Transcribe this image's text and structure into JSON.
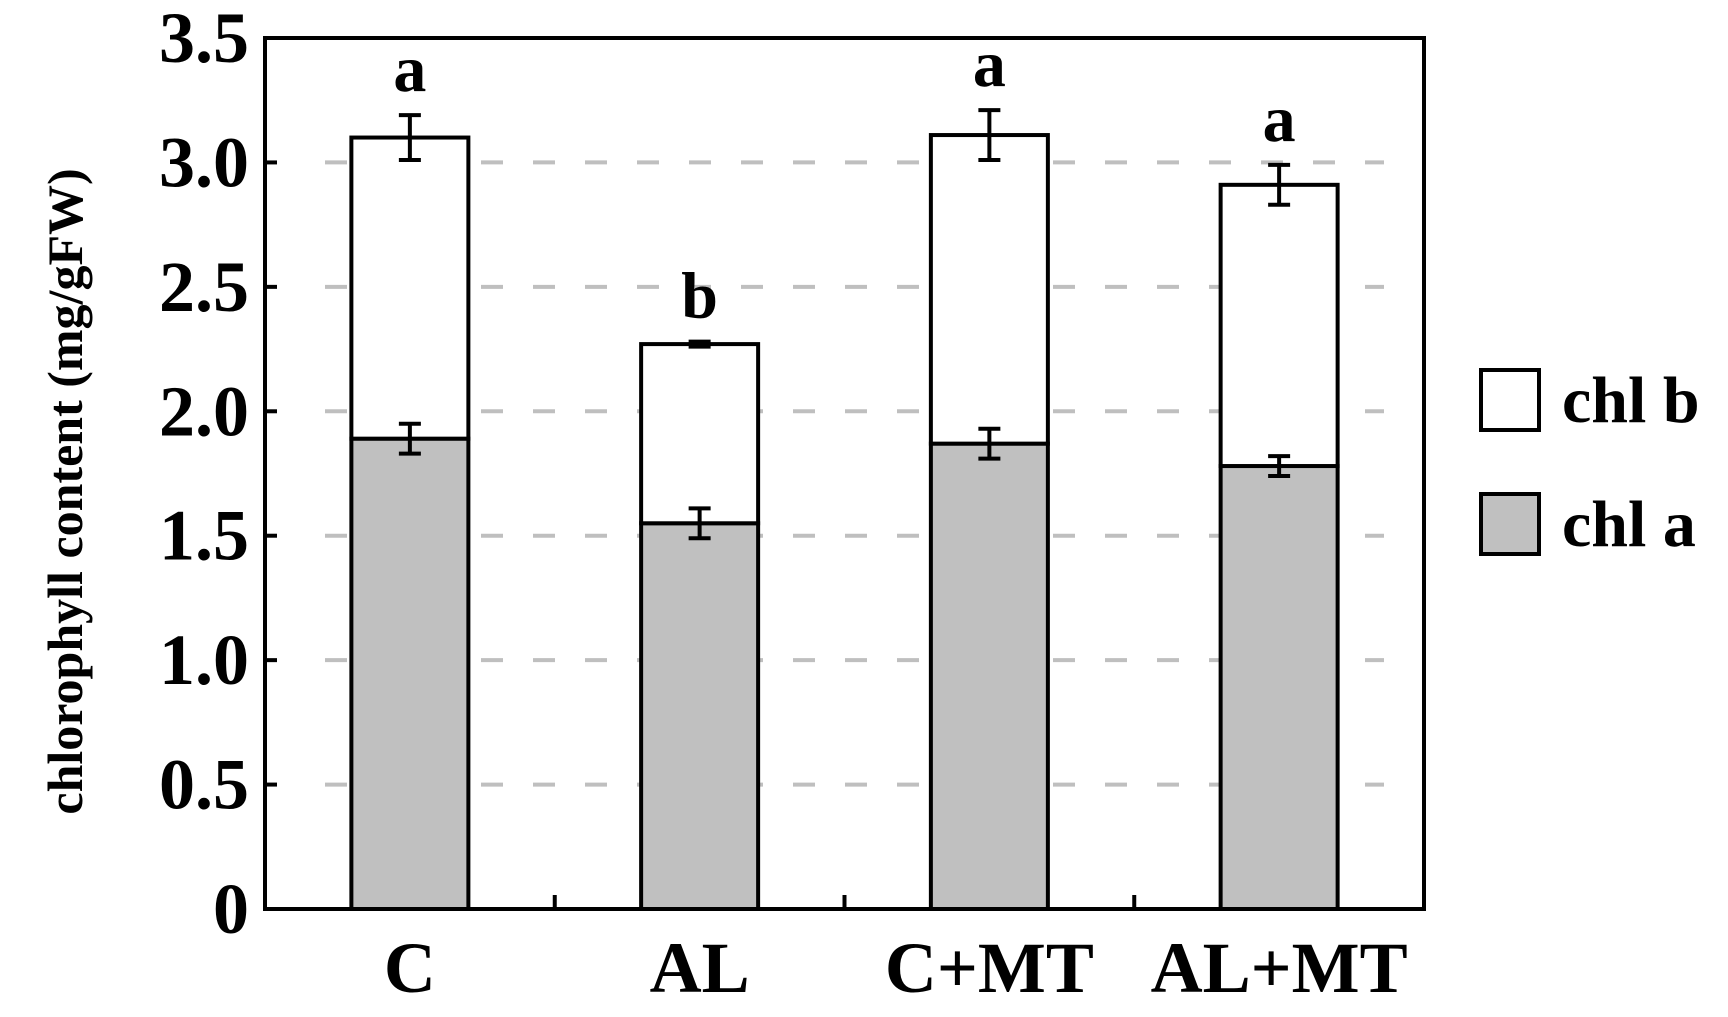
{
  "colors": {
    "chl_a_fill": "#c0c0c0",
    "chl_b_fill": "#ffffff",
    "stroke": "#000000",
    "grid": "#bfbfbf"
  },
  "chart_data": {
    "type": "bar",
    "stacked": true,
    "categories": [
      "C",
      "AL",
      "C+MT",
      "AL+MT"
    ],
    "ylabel": "chlorophyll content (mg/gFW)",
    "xlabel": "",
    "title": "",
    "ylim": [
      0,
      3.5
    ],
    "yticks": [
      "0",
      "0.5",
      "1.0",
      "1.5",
      "2.0",
      "2.5",
      "3.0",
      "3.5"
    ],
    "grid": "horizontal dashed",
    "legend_position": "right",
    "series": [
      {
        "name": "chl a",
        "values": [
          1.89,
          1.55,
          1.87,
          1.78
        ],
        "errors": [
          0.06,
          0.06,
          0.06,
          0.04
        ]
      },
      {
        "name": "chl b",
        "values": [
          1.21,
          0.72,
          1.24,
          1.13
        ],
        "errors": [
          0.09,
          0.01,
          0.1,
          0.08
        ]
      }
    ],
    "totals": [
      3.1,
      2.27,
      3.11,
      2.91
    ],
    "significance_labels": [
      "a",
      "b",
      "a",
      "a"
    ],
    "legend": [
      {
        "label": "chl b",
        "series": "chl b"
      },
      {
        "label": "chl a",
        "series": "chl a"
      }
    ]
  }
}
